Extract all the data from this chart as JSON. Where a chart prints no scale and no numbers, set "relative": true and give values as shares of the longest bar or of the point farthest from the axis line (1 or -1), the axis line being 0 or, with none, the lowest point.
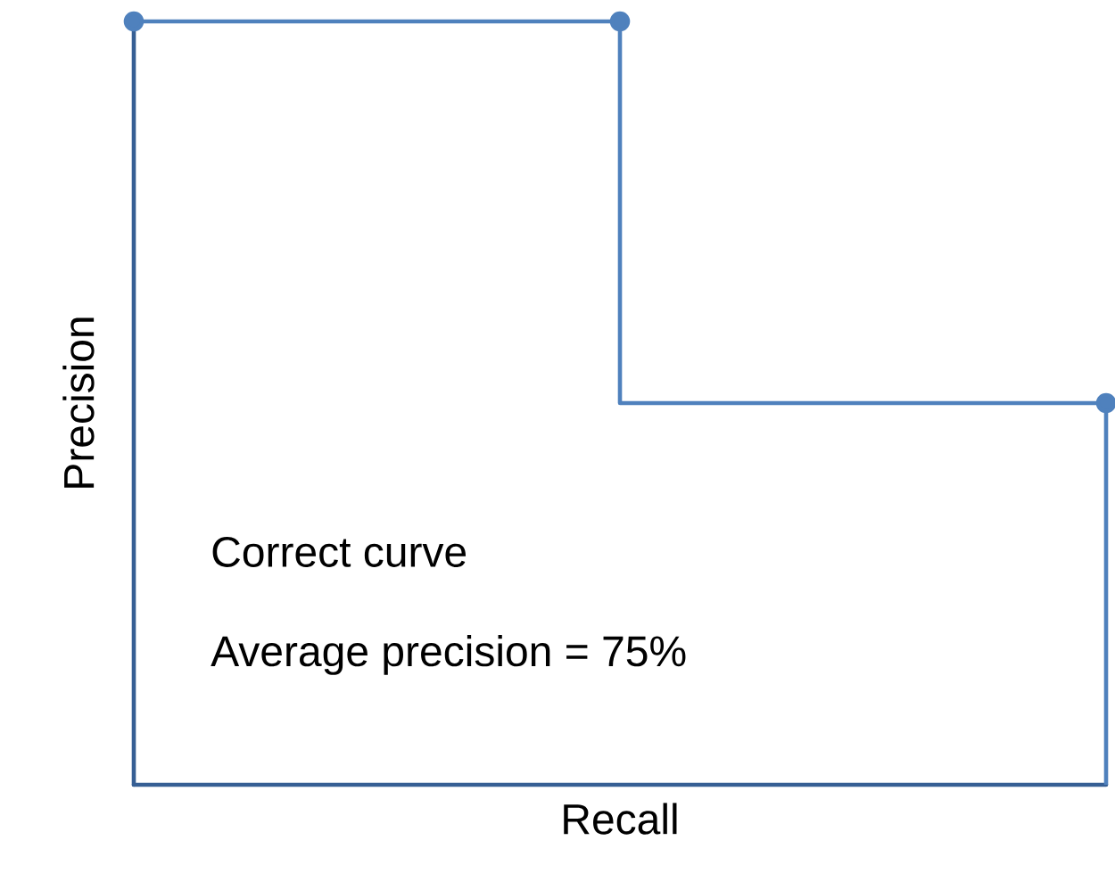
{
  "chart_data": {
    "type": "step",
    "xlabel": "Recall",
    "ylabel": "Precision",
    "relative": true,
    "categories": [
      null,
      null,
      null
    ],
    "series": [
      {
        "color": "#4f81bd",
        "values": [
          1,
          1,
          0.5
        ]
      }
    ],
    "marker": "circle",
    "line_style": "solid",
    "annotations": [
      "Correct curve",
      "Average precision = 75%"
    ]
  }
}
